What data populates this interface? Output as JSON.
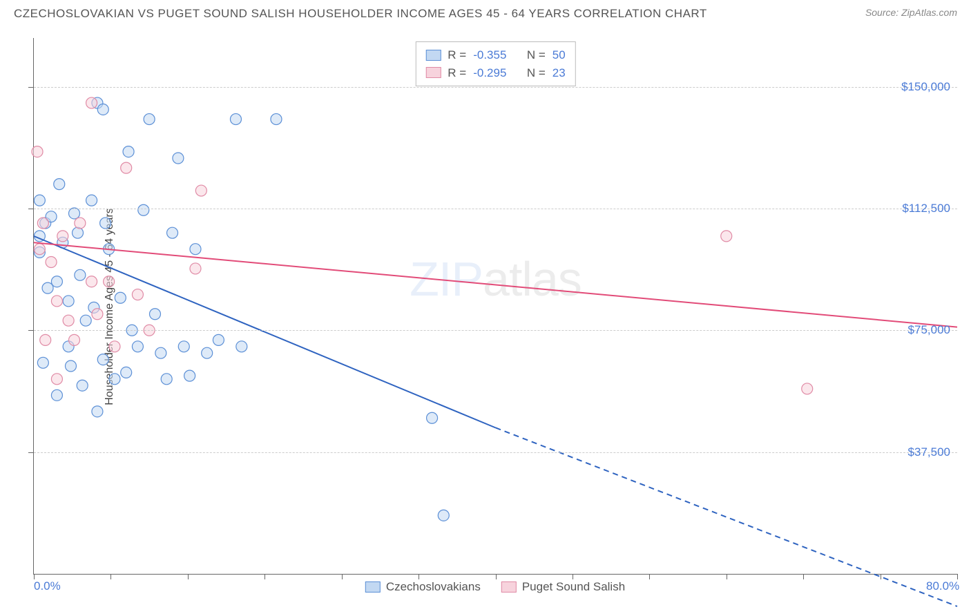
{
  "header": {
    "title": "CZECHOSLOVAKIAN VS PUGET SOUND SALISH HOUSEHOLDER INCOME AGES 45 - 64 YEARS CORRELATION CHART",
    "source": "Source: ZipAtlas.com"
  },
  "chart": {
    "type": "scatter",
    "y_axis_title": "Householder Income Ages 45 - 64 years",
    "watermark_left": "ZIP",
    "watermark_right": "atlas",
    "xlim": [
      0,
      80
    ],
    "ylim": [
      0,
      165000
    ],
    "x_ticks": [
      {
        "pos": 0,
        "label": "0.0%"
      },
      {
        "pos": 80,
        "label": "80.0%"
      }
    ],
    "y_ticks": [
      {
        "pos": 37500,
        "label": "$37,500"
      },
      {
        "pos": 75000,
        "label": "$75,000"
      },
      {
        "pos": 112500,
        "label": "$112,500"
      },
      {
        "pos": 150000,
        "label": "$150,000"
      }
    ],
    "grid_color": "#cccccc",
    "series": [
      {
        "name": "Czechoslovakians",
        "color_fill": "#c2d8f2",
        "color_stroke": "#5b8fd6",
        "line_color": "#2e63c0",
        "r_value": "-0.355",
        "n_value": "50",
        "regression": {
          "x1": 0,
          "y1": 104000,
          "x2_solid": 40,
          "y2_solid": 45000,
          "x2": 80,
          "y2": -10000
        },
        "points": [
          [
            0.5,
            99000
          ],
          [
            0.5,
            104000
          ],
          [
            0.5,
            115000
          ],
          [
            0.8,
            65000
          ],
          [
            1.0,
            108000
          ],
          [
            1.2,
            88000
          ],
          [
            1.5,
            110000
          ],
          [
            2.0,
            55000
          ],
          [
            2.2,
            120000
          ],
          [
            2.5,
            102000
          ],
          [
            3.0,
            70000
          ],
          [
            3.2,
            64000
          ],
          [
            3.5,
            111000
          ],
          [
            3.8,
            105000
          ],
          [
            4.0,
            92000
          ],
          [
            4.2,
            58000
          ],
          [
            4.5,
            78000
          ],
          [
            5.0,
            115000
          ],
          [
            5.2,
            82000
          ],
          [
            5.5,
            145000
          ],
          [
            6.0,
            66000
          ],
          [
            6.2,
            108000
          ],
          [
            6.5,
            100000
          ],
          [
            7.0,
            60000
          ],
          [
            7.5,
            85000
          ],
          [
            8.0,
            62000
          ],
          [
            8.2,
            130000
          ],
          [
            8.5,
            75000
          ],
          [
            9.0,
            70000
          ],
          [
            9.5,
            112000
          ],
          [
            10.0,
            140000
          ],
          [
            10.5,
            80000
          ],
          [
            11.0,
            68000
          ],
          [
            11.5,
            60000
          ],
          [
            12.0,
            105000
          ],
          [
            12.5,
            128000
          ],
          [
            13.0,
            70000
          ],
          [
            13.5,
            61000
          ],
          [
            14.0,
            100000
          ],
          [
            15.0,
            68000
          ],
          [
            16.0,
            72000
          ],
          [
            17.5,
            140000
          ],
          [
            18.0,
            70000
          ],
          [
            21.0,
            140000
          ],
          [
            5.5,
            50000
          ],
          [
            34.5,
            48000
          ],
          [
            35.5,
            18000
          ],
          [
            3.0,
            84000
          ],
          [
            2.0,
            90000
          ],
          [
            6.0,
            143000
          ]
        ]
      },
      {
        "name": "Puget Sound Salish",
        "color_fill": "#f7d3dd",
        "color_stroke": "#e08aa5",
        "line_color": "#e24b78",
        "r_value": "-0.295",
        "n_value": "23",
        "regression": {
          "x1": 0,
          "y1": 102000,
          "x2_solid": 80,
          "y2_solid": 76000,
          "x2": 80,
          "y2": 76000
        },
        "points": [
          [
            0.3,
            130000
          ],
          [
            0.5,
            100000
          ],
          [
            0.8,
            108000
          ],
          [
            1.0,
            72000
          ],
          [
            1.5,
            96000
          ],
          [
            2.0,
            84000
          ],
          [
            2.5,
            104000
          ],
          [
            3.0,
            78000
          ],
          [
            3.5,
            72000
          ],
          [
            4.0,
            108000
          ],
          [
            5.0,
            145000
          ],
          [
            5.5,
            80000
          ],
          [
            6.5,
            90000
          ],
          [
            7.0,
            70000
          ],
          [
            8.0,
            125000
          ],
          [
            9.0,
            86000
          ],
          [
            10.0,
            75000
          ],
          [
            14.0,
            94000
          ],
          [
            14.5,
            118000
          ],
          [
            2.0,
            60000
          ],
          [
            5.0,
            90000
          ],
          [
            60.0,
            104000
          ],
          [
            67.0,
            57000
          ]
        ]
      }
    ],
    "stats_box": {
      "r_prefix": "R =",
      "n_prefix": "N ="
    },
    "marker_radius": 8,
    "marker_opacity": 0.55,
    "line_width": 2
  }
}
